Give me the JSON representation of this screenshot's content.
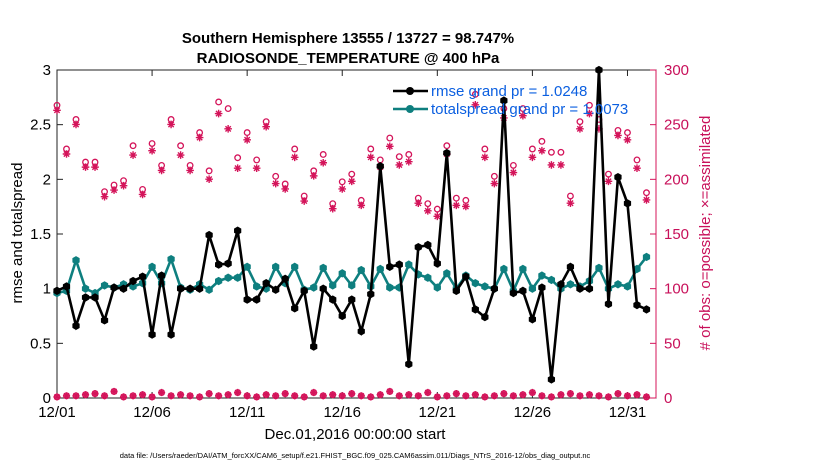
{
  "chart_data": {
    "type": "line",
    "title": "Southern Hemisphere 13555 / 13727 = 98.747%",
    "subtitle": "RADIOSONDE_TEMPERATURE @ 400 hPa",
    "xlabel": "Dec.01,2016 00:00:00 start",
    "ylabel": "rmse and totalspread",
    "ylabel_right": "# of obs: o=possible; ×=assimilated",
    "xlim": [
      0,
      31.5
    ],
    "ylim": [
      0,
      3
    ],
    "ylim_right": [
      0,
      300
    ],
    "x_ticks": [
      0,
      5,
      10,
      15,
      20,
      25,
      30
    ],
    "x_tick_labels": [
      "12/01",
      "12/06",
      "12/11",
      "12/16",
      "12/21",
      "12/26",
      "12/31"
    ],
    "y_ticks": [
      0,
      0.5,
      1,
      1.5,
      2,
      2.5,
      3
    ],
    "y_tick_labels": [
      "0",
      "0.5",
      "1",
      "1.5",
      "2",
      "2.5",
      "3"
    ],
    "y_ticks_right": [
      0,
      50,
      100,
      150,
      200,
      250,
      300
    ],
    "y_tick_labels_right": [
      "0",
      "50",
      "100",
      "150",
      "200",
      "250",
      "300"
    ],
    "grid": false,
    "legend_position": "top-right",
    "colors": {
      "rmse": "#000000",
      "totalspread": "#0e7f7f",
      "obs": "#d4145a",
      "legend_text": "#0b5fe0"
    },
    "series": [
      {
        "name": "rmse grand pr = 1.0248",
        "axis": "left",
        "x": [
          0,
          0.5,
          1,
          1.5,
          2,
          2.5,
          3,
          3.5,
          4,
          4.5,
          5,
          5.5,
          6,
          6.5,
          7,
          7.5,
          8,
          8.5,
          9,
          9.5,
          10,
          10.5,
          11,
          11.5,
          12,
          12.5,
          13,
          13.5,
          14,
          14.5,
          15,
          15.5,
          16,
          16.5,
          17,
          17.5,
          18,
          18.5,
          19,
          19.5,
          20,
          20.5,
          21,
          21.5,
          22,
          22.5,
          23,
          23.5,
          24,
          24.5,
          25,
          25.5,
          26,
          26.5,
          27,
          27.5,
          28,
          28.5,
          29,
          29.5,
          30,
          30.5,
          31
        ],
        "values": [
          0.98,
          1.02,
          0.66,
          0.92,
          0.92,
          0.71,
          1.01,
          1.0,
          1.07,
          1.11,
          0.58,
          1.12,
          0.58,
          1.0,
          1.0,
          1.0,
          1.49,
          1.22,
          1.23,
          1.53,
          0.9,
          0.9,
          1.05,
          0.99,
          1.09,
          0.82,
          0.98,
          0.47,
          1.0,
          0.9,
          0.75,
          0.9,
          0.61,
          0.95,
          2.12,
          1.2,
          1.22,
          0.31,
          1.38,
          1.4,
          1.23,
          2.24,
          0.98,
          1.11,
          0.81,
          0.74,
          1.0,
          2.72,
          0.96,
          0.98,
          0.72,
          1.01,
          0.17,
          1.04,
          1.2,
          1.0,
          1.0,
          3.0,
          0.86,
          2.02,
          1.78,
          0.85,
          0.81
        ]
      },
      {
        "name": "totalspread grand pr = 1.0073",
        "axis": "left",
        "x": [
          0,
          0.5,
          1,
          1.5,
          2,
          2.5,
          3,
          3.5,
          4,
          4.5,
          5,
          5.5,
          6,
          6.5,
          7,
          7.5,
          8,
          8.5,
          9,
          9.5,
          10,
          10.5,
          11,
          11.5,
          12,
          12.5,
          13,
          13.5,
          14,
          14.5,
          15,
          15.5,
          16,
          16.5,
          17,
          17.5,
          18,
          18.5,
          19,
          19.5,
          20,
          20.5,
          21,
          21.5,
          22,
          22.5,
          23,
          23.5,
          24,
          24.5,
          25,
          25.5,
          26,
          26.5,
          27,
          27.5,
          28,
          28.5,
          29,
          29.5,
          30,
          30.5,
          31
        ],
        "values": [
          0.96,
          0.98,
          1.26,
          1.0,
          0.96,
          1.03,
          1.01,
          1.04,
          1.02,
          1.05,
          1.2,
          1.05,
          1.27,
          1.01,
          0.99,
          1.04,
          0.99,
          1.07,
          1.1,
          1.1,
          1.2,
          1.02,
          1.0,
          1.2,
          1.05,
          1.2,
          0.99,
          1.01,
          1.19,
          1.03,
          1.14,
          1.03,
          1.17,
          1.02,
          1.18,
          1.01,
          1.01,
          1.22,
          1.13,
          1.1,
          1.01,
          1.14,
          1.0,
          1.12,
          1.05,
          1.02,
          1.0,
          1.18,
          0.98,
          1.18,
          1.0,
          1.12,
          1.08,
          1.0,
          1.04,
          1.02,
          1.07,
          1.19,
          1.0,
          1.04,
          1.02,
          1.18,
          1.29
        ]
      },
      {
        "name": "obs possible",
        "axis": "right",
        "x": [
          0,
          0.5,
          1,
          1.5,
          2,
          2.5,
          3,
          3.5,
          4,
          4.5,
          5,
          5.5,
          6,
          6.5,
          7,
          7.5,
          8,
          8.5,
          9,
          9.5,
          10,
          10.5,
          11,
          11.5,
          12,
          12.5,
          13,
          13.5,
          14,
          14.5,
          15,
          15.5,
          16,
          16.5,
          17,
          17.5,
          18,
          18.5,
          19,
          19.5,
          20,
          20.5,
          21,
          21.5,
          22,
          22.5,
          23,
          23.5,
          24,
          24.5,
          25,
          25.5,
          26,
          26.5,
          27,
          27.5,
          28,
          28.5,
          29,
          29.5,
          30,
          30.5,
          31
        ],
        "values": [
          265,
          225,
          252,
          213,
          213,
          186,
          192,
          196,
          228,
          188,
          230,
          210,
          252,
          228,
          210,
          240,
          205,
          268,
          262,
          217,
          240,
          215,
          250,
          200,
          193,
          225,
          182,
          205,
          220,
          175,
          195,
          202,
          178,
          225,
          215,
          235,
          218,
          220,
          180,
          175,
          170,
          228,
          180,
          178,
          275,
          225,
          200,
          262,
          210,
          262,
          225,
          232,
          222,
          222,
          182,
          250,
          265,
          252,
          202,
          242,
          240,
          215,
          185
        ]
      },
      {
        "name": "obs assimilated",
        "axis": "right",
        "x": [
          0,
          0.5,
          1,
          1.5,
          2,
          2.5,
          3,
          3.5,
          4,
          4.5,
          5,
          5.5,
          6,
          6.5,
          7,
          7.5,
          8,
          8.5,
          9,
          9.5,
          10,
          10.5,
          11,
          11.5,
          12,
          12.5,
          13,
          13.5,
          14,
          14.5,
          15,
          15.5,
          16,
          16.5,
          17,
          17.5,
          18,
          18.5,
          19,
          19.5,
          20,
          20.5,
          21,
          21.5,
          22,
          22.5,
          23,
          23.5,
          24,
          24.5,
          25,
          25.5,
          26,
          26.5,
          27,
          27.5,
          28,
          28.5,
          29,
          29.5,
          30,
          30.5,
          31
        ],
        "values": [
          265,
          225,
          252,
          213,
          213,
          186,
          192,
          196,
          224,
          188,
          228,
          210,
          252,
          224,
          210,
          240,
          202,
          262,
          248,
          212,
          238,
          212,
          250,
          198,
          193,
          222,
          182,
          205,
          217,
          175,
          193,
          200,
          178,
          222,
          213,
          232,
          215,
          218,
          180,
          173,
          168,
          225,
          178,
          177,
          270,
          222,
          198,
          258,
          208,
          260,
          222,
          228,
          215,
          215,
          180,
          248,
          262,
          248,
          200,
          242,
          238,
          212,
          183
        ]
      },
      {
        "name": "obs bottom possible",
        "axis": "right",
        "x": [
          0,
          0.5,
          1,
          1.5,
          2,
          2.5,
          3,
          3.5,
          4,
          4.5,
          5,
          5.5,
          6,
          6.5,
          7,
          7.5,
          8,
          8.5,
          9,
          9.5,
          10,
          10.5,
          11,
          11.5,
          12,
          12.5,
          13,
          13.5,
          14,
          14.5,
          15,
          15.5,
          16,
          16.5,
          17,
          17.5,
          18,
          18.5,
          19,
          19.5,
          20,
          20.5,
          21,
          21.5,
          22,
          22.5,
          23,
          23.5,
          24,
          24.5,
          25,
          25.5,
          26,
          26.5,
          27,
          27.5,
          28,
          28.5,
          29,
          29.5,
          30,
          30.5,
          31
        ],
        "values": [
          1,
          2,
          2,
          3,
          4,
          2,
          6,
          1,
          2,
          3,
          1,
          5,
          2,
          3,
          2,
          1,
          4,
          2,
          3,
          5,
          2,
          1,
          3,
          2,
          4,
          2,
          1,
          5,
          2,
          3,
          2,
          4,
          2,
          1,
          3,
          6,
          2,
          3,
          2,
          5,
          1,
          2,
          4,
          2,
          3,
          1,
          2,
          4,
          2,
          3,
          5,
          2,
          1,
          3,
          4,
          2,
          3,
          2,
          1,
          4,
          2,
          3,
          1
        ]
      },
      {
        "name": "obs bottom assimilated",
        "axis": "right",
        "x": [
          0,
          0.5,
          1,
          1.5,
          2,
          2.5,
          3,
          3.5,
          4,
          4.5,
          5,
          5.5,
          6,
          6.5,
          7,
          7.5,
          8,
          8.5,
          9,
          9.5,
          10,
          10.5,
          11,
          11.5,
          12,
          12.5,
          13,
          13.5,
          14,
          14.5,
          15,
          15.5,
          16,
          16.5,
          17,
          17.5,
          18,
          18.5,
          19,
          19.5,
          20,
          20.5,
          21,
          21.5,
          22,
          22.5,
          23,
          23.5,
          24,
          24.5,
          25,
          25.5,
          26,
          26.5,
          27,
          27.5,
          28,
          28.5,
          29,
          29.5,
          30,
          30.5,
          31
        ],
        "values": [
          1,
          2,
          2,
          3,
          4,
          2,
          6,
          1,
          2,
          3,
          1,
          5,
          2,
          3,
          2,
          1,
          4,
          2,
          3,
          5,
          2,
          1,
          3,
          2,
          4,
          2,
          1,
          5,
          2,
          3,
          2,
          4,
          2,
          1,
          3,
          6,
          2,
          3,
          2,
          5,
          1,
          2,
          4,
          2,
          3,
          1,
          2,
          4,
          2,
          3,
          5,
          2,
          1,
          3,
          4,
          2,
          3,
          2,
          1,
          4,
          2,
          3,
          1
        ]
      }
    ],
    "legend": [
      {
        "label": "rmse grand pr = 1.0248",
        "series": "rmse"
      },
      {
        "label": "totalspread grand pr = 1.0073",
        "series": "totalspread"
      }
    ]
  },
  "footnote": "data file: /Users/raeder/DAI/ATM_forcXX/CAM6_setup/f.e21.FHIST_BGC.f09_025.CAM6assim.011/Diags_NTrS_2016-12/obs_diag_output.nc"
}
